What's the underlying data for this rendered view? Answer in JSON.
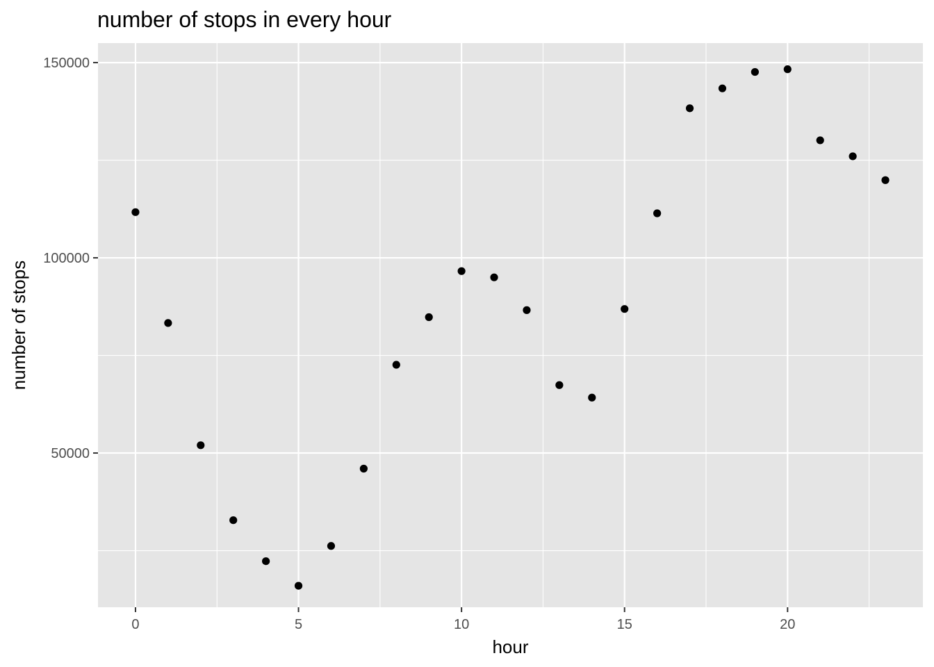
{
  "chart_data": {
    "type": "scatter",
    "title": "number of stops in every hour",
    "xlabel": "hour",
    "ylabel": "number of stops",
    "x": [
      0,
      1,
      2,
      3,
      4,
      5,
      6,
      7,
      8,
      9,
      10,
      11,
      12,
      13,
      14,
      15,
      16,
      17,
      18,
      19,
      20,
      21,
      22,
      23
    ],
    "y": [
      111700,
      83300,
      52000,
      32800,
      22300,
      16000,
      26200,
      46000,
      72600,
      84800,
      96600,
      95000,
      86600,
      67400,
      64200,
      86900,
      111400,
      138300,
      143400,
      147600,
      148300,
      130100,
      126000,
      119900
    ],
    "xlim": [
      -1.15,
      24.15
    ],
    "ylim": [
      10500,
      155000
    ],
    "x_ticks": [
      0,
      5,
      10,
      15,
      20
    ],
    "x_tick_labels": [
      "0",
      "5",
      "10",
      "15",
      "20"
    ],
    "x_minor_ticks": [
      2.5,
      7.5,
      12.5,
      17.5,
      22.5
    ],
    "y_ticks": [
      50000,
      100000,
      150000
    ],
    "y_tick_labels": [
      "50000",
      "100000",
      "150000"
    ],
    "y_minor_ticks": [
      25000,
      75000,
      125000
    ],
    "grid": true,
    "legend": "none",
    "colors": {
      "panel": "#e5e5e5",
      "grid": "#ffffff",
      "point": "#000000",
      "tick_text": "#4d4d4d"
    }
  }
}
